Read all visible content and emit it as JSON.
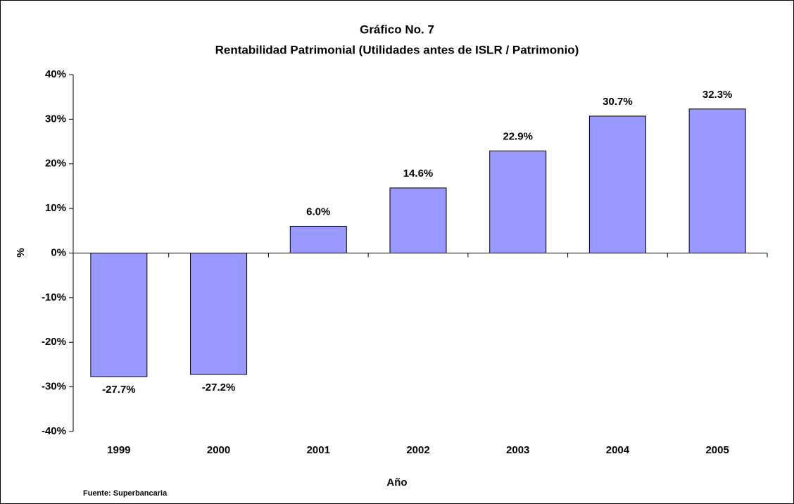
{
  "chart_data": {
    "type": "bar",
    "title": "Gráfico No. 7",
    "subtitle": "Rentabilidad Patrimonial (Utilidades antes de ISLR / Patrimonio)",
    "y_label": "%",
    "x_label": "Año",
    "source": "Fuente: Superbancaria",
    "categories": [
      "1999",
      "2000",
      "2001",
      "2002",
      "2003",
      "2004",
      "2005"
    ],
    "values": [
      -27.7,
      -27.2,
      6.0,
      14.6,
      22.9,
      30.7,
      32.3
    ],
    "value_labels": [
      "-27.7%",
      "-27.2%",
      "6.0%",
      "14.6%",
      "22.9%",
      "30.7%",
      "32.3%"
    ],
    "color": "#9999ff",
    "ylim": [
      -40,
      40
    ],
    "yticks": [
      {
        "value": -40,
        "label": "-40%"
      },
      {
        "value": -30,
        "label": "-30%"
      },
      {
        "value": -20,
        "label": "-20%"
      },
      {
        "value": -10,
        "label": "-10%"
      },
      {
        "value": 0,
        "label": "0%"
      },
      {
        "value": 10,
        "label": "10%"
      },
      {
        "value": 20,
        "label": "20%"
      },
      {
        "value": 30,
        "label": "30%"
      },
      {
        "value": 40,
        "label": "40%"
      }
    ],
    "grid": false
  }
}
